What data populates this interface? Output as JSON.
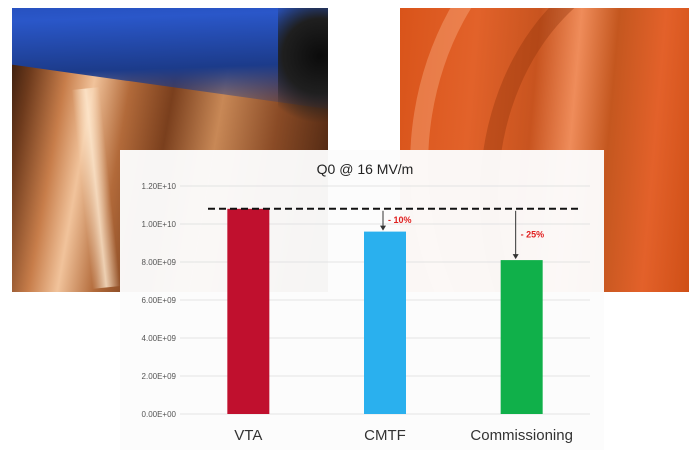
{
  "chart_data": {
    "type": "bar",
    "title": "Q0 @ 16 MV/m",
    "categories": [
      "VTA",
      "CMTF",
      "Commissioning"
    ],
    "values": [
      10800000000,
      9600000000,
      8100000000
    ],
    "colors": [
      "#c0102e",
      "#2ab0ee",
      "#10b04a"
    ],
    "ylim": [
      0,
      12000000000
    ],
    "yticks": [
      0,
      2000000000,
      4000000000,
      6000000000,
      8000000000,
      10000000000,
      12000000000
    ],
    "ytick_labels": [
      "0.00E+00",
      "2.00E+09",
      "4.00E+09",
      "6.00E+09",
      "8.00E+09",
      "1.00E+10",
      "1.20E+10"
    ],
    "reference_line": 10800000000,
    "annotations": [
      {
        "category": "CMTF",
        "text": "- 10%"
      },
      {
        "category": "Commissioning",
        "text": "- 25%"
      }
    ],
    "grid": true,
    "xlabel": "",
    "ylabel": ""
  }
}
